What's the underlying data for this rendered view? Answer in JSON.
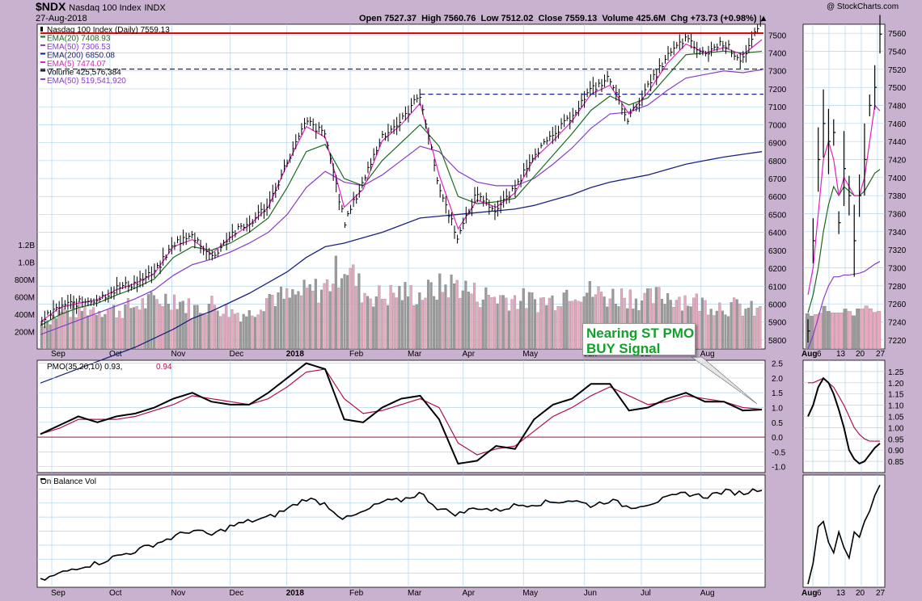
{
  "header": {
    "symbol": "$NDX",
    "name": "Nasdaq 100 Index",
    "exchange": "INDX",
    "date": "27-Aug-2018",
    "open_label": "Open",
    "open": "7527.37",
    "high_label": "High",
    "high": "7560.76",
    "low_label": "Low",
    "low": "7512.02",
    "close_label": "Close",
    "close": "7559.13",
    "volume_label": "Volume",
    "volume": "425.6M",
    "chg_label": "Chg",
    "chg": "+73.73 (+0.98%)",
    "credit": "@ StockCharts.com"
  },
  "legend": [
    {
      "text": "Nasdaq 100 Index (Daily) 7559.13",
      "color": "#000000"
    },
    {
      "text": "EMA(20) 7408.93",
      "color": "#1a6b1a"
    },
    {
      "text": "EMA(50) 7306.53",
      "color": "#8a3cc8"
    },
    {
      "text": "EMA(200) 6850.08",
      "color": "#1a237e"
    },
    {
      "text": "EMA(5) 7474.07",
      "color": "#e020c0"
    },
    {
      "text": "Volume 425,576,384",
      "color": "#000000"
    },
    {
      "text": "EMA(50) 519,541,920",
      "color": "#8a3cc8"
    }
  ],
  "callout": {
    "line1": "Nearing ST PMO",
    "line2": "BUY Signal",
    "color": "#12a02a"
  },
  "pmo_label": "PMO(35,20,10) 0.93,",
  "pmo_signal_value": "0.94",
  "obv_label": "On Balance Vol",
  "colors": {
    "price": "#000000",
    "ema5": "#e020c0",
    "ema20": "#1a6b1a",
    "ema50": "#8a3cc8",
    "ema200": "#1a237e",
    "resistance": "#d00000",
    "support": "#1a237e",
    "pmo": "#000000",
    "pmo_signal": "#b01050",
    "vol_up": "#9a9a9a",
    "vol_down": "#e8a8c0",
    "panel_bg": "#ffffff",
    "grid": "#b4d6ea"
  },
  "chart_data": [
    {
      "type": "candlestick",
      "title": "Nasdaq 100 Index (Daily)",
      "x_ticks": [
        "Sep",
        "Oct",
        "Nov",
        "Dec",
        "2018",
        "Feb",
        "Mar",
        "Apr",
        "May",
        "Jun",
        "Jul",
        "Aug"
      ],
      "x_ticks_bold": [
        "2018"
      ],
      "y_ticks": [
        5800,
        5900,
        6000,
        6100,
        6200,
        6300,
        6400,
        6500,
        6600,
        6700,
        6800,
        6900,
        7000,
        7100,
        7200,
        7300,
        7400,
        7500
      ],
      "volume_ticks": [
        "200M",
        "400M",
        "600M",
        "800M",
        "1.0B",
        "1.2B"
      ],
      "ylim": [
        5750,
        7560
      ],
      "x": [
        "2017-08-28",
        "2017-09-08",
        "2017-09-18",
        "2017-09-29",
        "2017-10-10",
        "2017-10-20",
        "2017-10-31",
        "2017-11-10",
        "2017-11-21",
        "2017-11-30",
        "2017-12-11",
        "2017-12-21",
        "2018-01-02",
        "2018-01-12",
        "2018-01-22",
        "2018-01-29",
        "2018-02-08",
        "2018-02-16",
        "2018-02-26",
        "2018-03-08",
        "2018-03-12",
        "2018-03-23",
        "2018-04-02",
        "2018-04-12",
        "2018-04-23",
        "2018-05-03",
        "2018-05-14",
        "2018-05-24",
        "2018-06-05",
        "2018-06-15",
        "2018-06-20",
        "2018-06-28",
        "2018-07-09",
        "2018-07-19",
        "2018-07-25",
        "2018-08-01",
        "2018-08-10",
        "2018-08-20",
        "2018-08-27"
      ],
      "close": [
        5910,
        5990,
        6010,
        6030,
        6090,
        6120,
        6180,
        6340,
        6380,
        6260,
        6390,
        6450,
        6560,
        6800,
        7020,
        6940,
        6450,
        6690,
        6940,
        7020,
        7170,
        6650,
        6370,
        6620,
        6520,
        6640,
        6840,
        6930,
        7050,
        7190,
        7260,
        7030,
        7200,
        7370,
        7480,
        7390,
        7460,
        7360,
        7559
      ],
      "ema5": [
        5900,
        5980,
        6005,
        6025,
        6080,
        6115,
        6170,
        6320,
        6360,
        6280,
        6370,
        6440,
        6540,
        6780,
        6990,
        6930,
        6540,
        6640,
        6910,
        7000,
        7120,
        6720,
        6420,
        6580,
        6540,
        6620,
        6810,
        6910,
        7020,
        7170,
        7220,
        7060,
        7180,
        7340,
        7450,
        7400,
        7430,
        7390,
        7474
      ],
      "ema20": [
        5880,
        5940,
        5980,
        6005,
        6050,
        6090,
        6140,
        6260,
        6320,
        6300,
        6340,
        6400,
        6480,
        6650,
        6850,
        6890,
        6700,
        6660,
        6800,
        6900,
        7000,
        6880,
        6600,
        6560,
        6570,
        6590,
        6710,
        6830,
        6950,
        7080,
        7160,
        7110,
        7150,
        7270,
        7390,
        7400,
        7410,
        7400,
        7409
      ],
      "ema50": [
        5830,
        5870,
        5910,
        5950,
        5990,
        6030,
        6080,
        6160,
        6220,
        6250,
        6290,
        6340,
        6400,
        6500,
        6650,
        6740,
        6680,
        6660,
        6720,
        6800,
        6880,
        6850,
        6740,
        6680,
        6660,
        6660,
        6700,
        6780,
        6870,
        6980,
        7060,
        7070,
        7110,
        7190,
        7260,
        7280,
        7300,
        7290,
        7307
      ],
      "ema200": [
        5560,
        5600,
        5640,
        5680,
        5720,
        5760,
        5810,
        5860,
        5920,
        5960,
        6010,
        6060,
        6120,
        6180,
        6260,
        6320,
        6340,
        6370,
        6400,
        6440,
        6480,
        6490,
        6500,
        6510,
        6520,
        6530,
        6550,
        6580,
        6610,
        6650,
        6680,
        6700,
        6720,
        6750,
        6780,
        6800,
        6820,
        6835,
        6850
      ],
      "volume_millions": [
        300,
        420,
        450,
        470,
        440,
        500,
        550,
        600,
        450,
        520,
        430,
        400,
        620,
        580,
        650,
        700,
        1000,
        650,
        600,
        650,
        620,
        700,
        750,
        620,
        600,
        580,
        550,
        560,
        700,
        650,
        600,
        620,
        560,
        620,
        580,
        520,
        500,
        470,
        426
      ],
      "resistance": [
        {
          "y": 7510,
          "from": "2018-07-20",
          "to": "2018-08-27",
          "color": "#d00000"
        }
      ],
      "support": [
        {
          "y": 7310,
          "from": "2018-06-08",
          "to": "2018-08-27"
        },
        {
          "y": 7170,
          "from": "2018-03-12",
          "to": "2018-08-27"
        }
      ]
    },
    {
      "type": "line",
      "title": "PMO(35,20,10)",
      "y_ticks": [
        -1.0,
        -0.5,
        0.0,
        0.5,
        1.0,
        1.5,
        2.0,
        2.5
      ],
      "ylim": [
        -1.2,
        2.6
      ],
      "pmo": [
        0.1,
        0.4,
        0.7,
        0.5,
        0.7,
        0.8,
        1.0,
        1.3,
        1.5,
        1.2,
        1.1,
        1.1,
        1.5,
        2.0,
        2.5,
        2.3,
        0.6,
        0.5,
        1.0,
        1.3,
        1.4,
        0.6,
        -0.9,
        -0.8,
        -0.3,
        -0.4,
        0.6,
        1.1,
        1.3,
        1.8,
        1.8,
        0.9,
        1.0,
        1.3,
        1.5,
        1.2,
        1.2,
        0.9,
        0.93
      ],
      "signal": [
        0.1,
        0.3,
        0.6,
        0.6,
        0.6,
        0.7,
        0.9,
        1.1,
        1.4,
        1.3,
        1.2,
        1.1,
        1.3,
        1.7,
        2.2,
        2.3,
        1.3,
        0.8,
        0.9,
        1.1,
        1.3,
        1.0,
        -0.2,
        -0.6,
        -0.4,
        -0.3,
        0.2,
        0.7,
        1.0,
        1.4,
        1.7,
        1.4,
        1.1,
        1.2,
        1.4,
        1.3,
        1.2,
        1.0,
        0.94
      ]
    },
    {
      "type": "line",
      "title": "On Balance Vol",
      "obv": [
        0,
        8,
        16,
        20,
        28,
        34,
        42,
        50,
        58,
        52,
        62,
        68,
        72,
        82,
        94,
        88,
        70,
        78,
        90,
        92,
        100,
        82,
        76,
        84,
        80,
        86,
        88,
        90,
        92,
        86,
        92,
        84,
        88,
        94,
        100,
        96,
        102,
        100,
        106
      ]
    },
    {
      "type": "candlestick",
      "title": "Aug zoom",
      "x_ticks": [
        "Aug",
        "6",
        "13",
        "20",
        "27"
      ],
      "y_ticks": [
        7220,
        7240,
        7260,
        7280,
        7300,
        7320,
        7340,
        7360,
        7380,
        7400,
        7420,
        7440,
        7460,
        7480,
        7500,
        7520,
        7540,
        7560
      ],
      "ylim": [
        7210,
        7570
      ],
      "close": [
        7230,
        7330,
        7420,
        7460,
        7440,
        7450,
        7350,
        7410,
        7380,
        7330,
        7380,
        7420,
        7480,
        7500,
        7559
      ],
      "ema5": [
        7270,
        7300,
        7360,
        7420,
        7440,
        7420,
        7380,
        7400,
        7390,
        7380,
        7380,
        7400,
        7440,
        7480,
        7474
      ],
      "ema20": [
        7250,
        7270,
        7300,
        7340,
        7370,
        7390,
        7380,
        7390,
        7385,
        7380,
        7380,
        7385,
        7395,
        7405,
        7409
      ],
      "ema50": [
        7210,
        7225,
        7245,
        7265,
        7280,
        7290,
        7290,
        7292,
        7292,
        7293,
        7294,
        7296,
        7300,
        7304,
        7307
      ],
      "pmo_ticks": [
        0.85,
        0.9,
        0.95,
        1.0,
        1.05,
        1.1,
        1.15,
        1.2,
        1.25
      ],
      "pmo": [
        1.05,
        1.1,
        1.18,
        1.22,
        1.2,
        1.15,
        1.08,
        1.0,
        0.9,
        0.86,
        0.84,
        0.85,
        0.88,
        0.91,
        0.93
      ],
      "signal": [
        1.2,
        1.2,
        1.21,
        1.22,
        1.2,
        1.18,
        1.14,
        1.1,
        1.05,
        1.0,
        0.97,
        0.95,
        0.94,
        0.94,
        0.94
      ]
    }
  ]
}
